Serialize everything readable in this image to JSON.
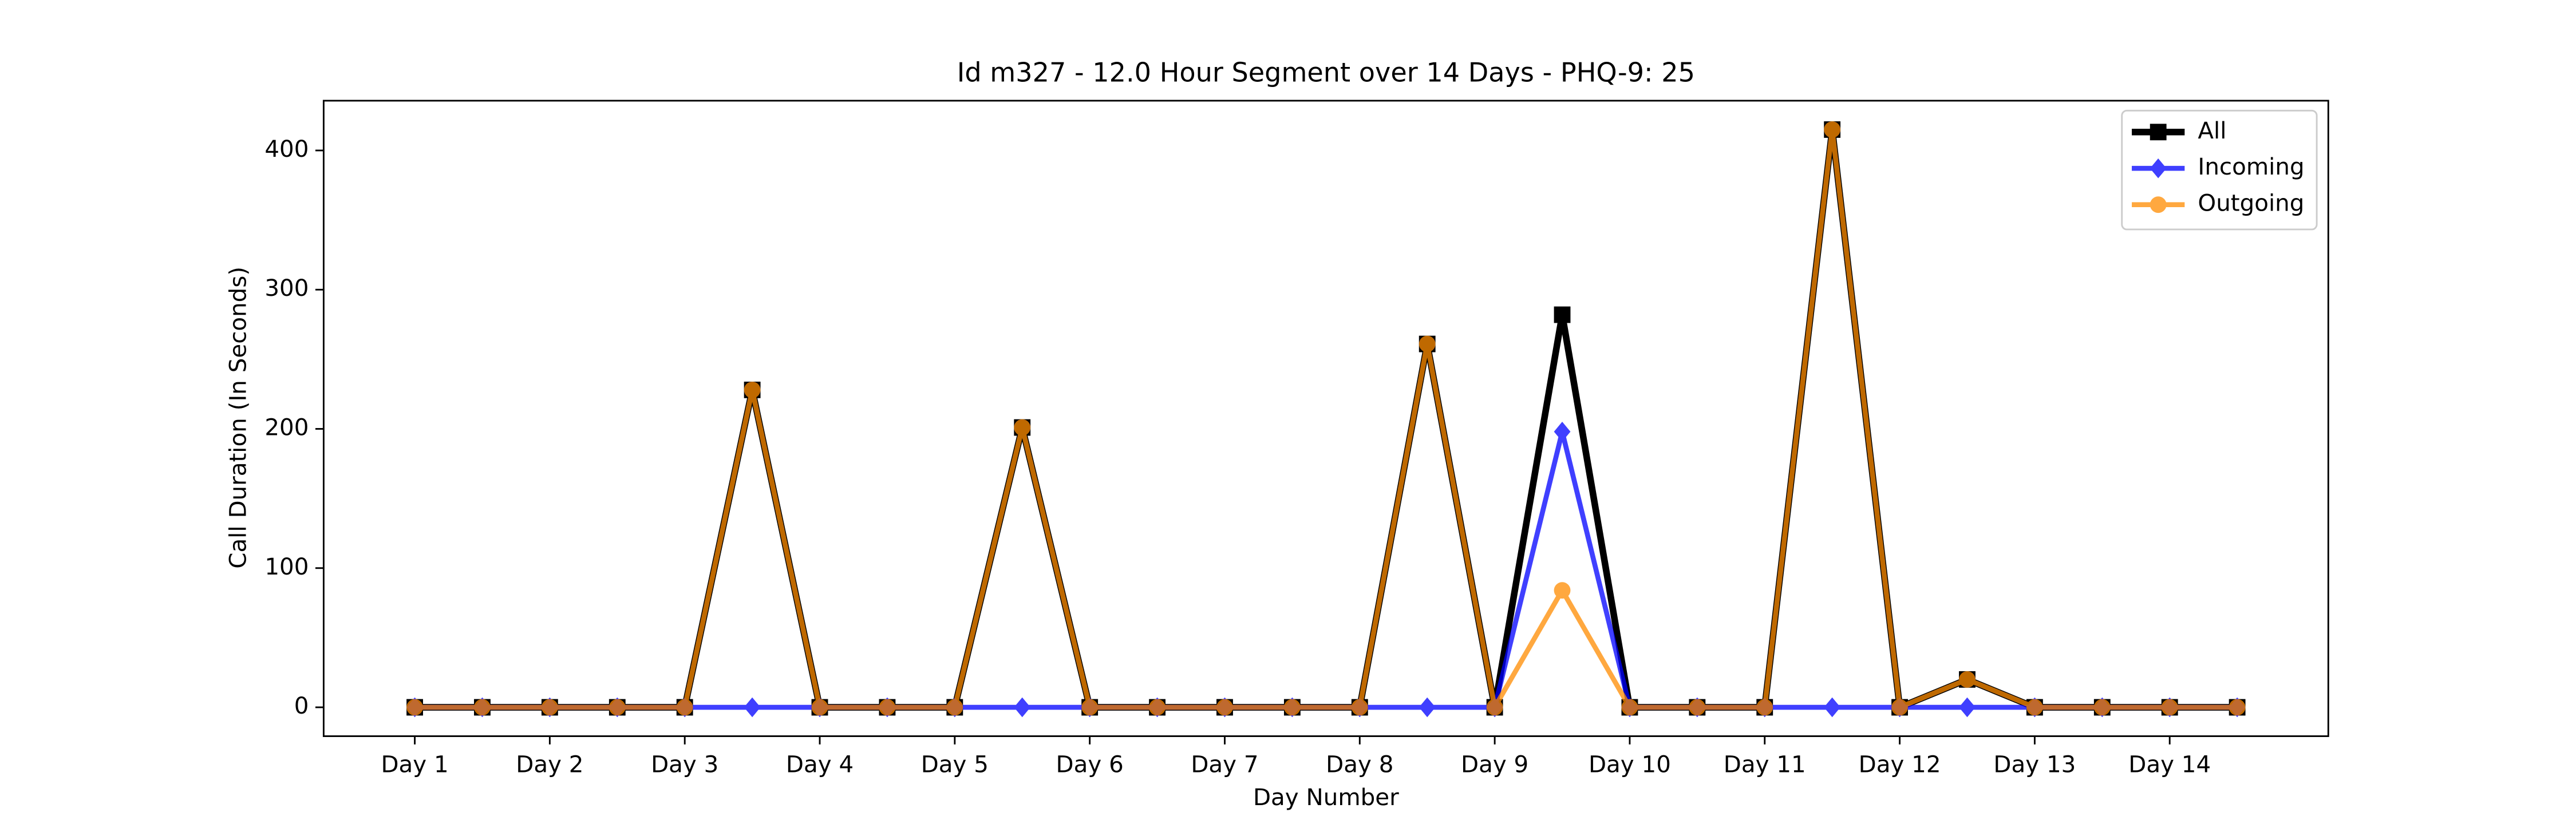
{
  "chart_data": {
    "type": "line",
    "title": "Id m327 - 12.0 Hour Segment over 14 Days - PHQ-9: 25",
    "x_label": "Day Number",
    "y_label": "Call Duration (In Seconds)",
    "categories": [
      "Day 1",
      null,
      "Day 2",
      null,
      "Day 3",
      null,
      "Day 4",
      null,
      "Day 5",
      null,
      "Day 6",
      null,
      "Day 7",
      null,
      "Day 8",
      null,
      "Day 9",
      null,
      "Day 10",
      null,
      "Day 11",
      null,
      "Day 12",
      null,
      "Day 13",
      null,
      "Day 14",
      null
    ],
    "series": [
      {
        "name": "All",
        "color": "#000000",
        "marker": "square",
        "values": [
          0,
          0,
          0,
          0,
          0,
          228,
          0,
          0,
          0,
          201,
          0,
          0,
          0,
          0,
          0,
          261,
          0,
          282,
          0,
          0,
          0,
          415,
          0,
          20,
          0,
          0,
          0,
          0
        ]
      },
      {
        "name": "Incoming",
        "color": "#0000ff",
        "marker": "diamond",
        "values": [
          0,
          0,
          0,
          0,
          0,
          0,
          0,
          0,
          0,
          0,
          0,
          0,
          0,
          0,
          0,
          0,
          0,
          198,
          0,
          0,
          0,
          0,
          0,
          0,
          0,
          0,
          0,
          0
        ]
      },
      {
        "name": "Outgoing",
        "color": "#ff8c00",
        "marker": "circle",
        "values": [
          0,
          0,
          0,
          0,
          0,
          228,
          0,
          0,
          0,
          201,
          0,
          0,
          0,
          0,
          0,
          261,
          0,
          84,
          0,
          0,
          0,
          415,
          0,
          20,
          0,
          0,
          0,
          0
        ]
      }
    ],
    "ylim": [
      -20.75,
      435.75
    ],
    "yticks": [
      0,
      100,
      200,
      300,
      400
    ],
    "legend": "upper right"
  }
}
